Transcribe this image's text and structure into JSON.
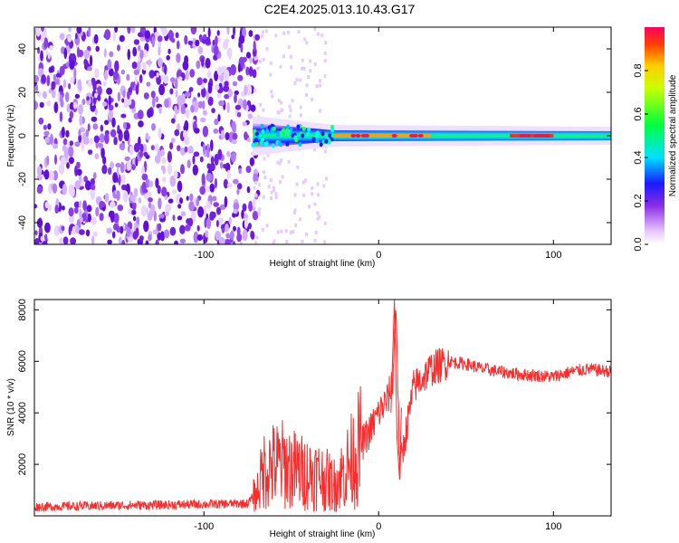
{
  "title": "C2E4.2025.013.10.43.G17",
  "chart_data": [
    {
      "type": "heatmap",
      "xlabel": "Height of straight line (km)",
      "ylabel": "Frequency (Hz)",
      "xlim": [
        -197,
        133
      ],
      "ylim": [
        -50,
        50
      ],
      "xticks": [
        -100,
        0,
        100
      ],
      "xtick_labels": [
        "-100",
        "0",
        "100"
      ],
      "yticks": [
        -40,
        -20,
        0,
        20,
        40
      ],
      "ytick_labels": [
        "-40",
        "-20",
        "0",
        "20",
        "40"
      ],
      "noise_region_x": [
        -197,
        -72
      ],
      "signal_line_frequency": 0,
      "signal_onset_x": -72,
      "peak_amplitude_regions_x": [
        [
          -25,
          30
        ],
        [
          75,
          100
        ]
      ],
      "colorbar": {
        "label": "Normalized spectral amplitude",
        "range": [
          0,
          1
        ],
        "ticks": [
          0.0,
          0.2,
          0.4,
          0.6,
          0.8
        ],
        "tick_labels": [
          "0.0",
          "0.2",
          "0.4",
          "0.6",
          "0.8"
        ]
      },
      "grid": false
    },
    {
      "type": "line",
      "xlabel": "Height of straight line (km)",
      "ylabel": "SNR (10 * v/v)",
      "xlim": [
        -197,
        133
      ],
      "ylim": [
        0,
        8400
      ],
      "xticks": [
        -100,
        0,
        100
      ],
      "xtick_labels": [
        "-100",
        "0",
        "100"
      ],
      "yticks": [
        2000,
        4000,
        6000,
        8000
      ],
      "ytick_labels": [
        "2000",
        "4000",
        "6000",
        "8000"
      ],
      "series_color": "#ff2a2a",
      "x": [
        -197,
        -150,
        -100,
        -75,
        -70,
        -65,
        -55,
        -45,
        -35,
        -25,
        -15,
        -5,
        0,
        5,
        8,
        10,
        12,
        20,
        30,
        40,
        50,
        60,
        80,
        100,
        110,
        120,
        133
      ],
      "y": [
        350,
        400,
        450,
        480,
        900,
        1900,
        2000,
        1700,
        1600,
        1200,
        2200,
        3300,
        4000,
        4500,
        5200,
        8300,
        1800,
        5000,
        5700,
        6000,
        5900,
        5700,
        5500,
        5400,
        5600,
        5700,
        5600
      ],
      "grid": false
    }
  ]
}
